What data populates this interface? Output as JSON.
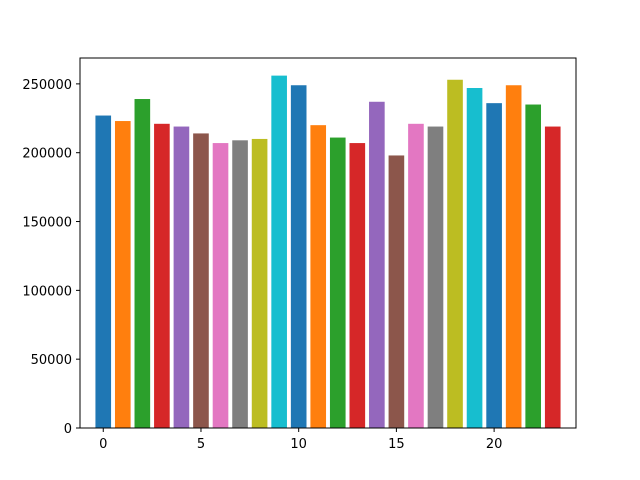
{
  "chart_data": {
    "type": "bar",
    "title": "",
    "xlabel": "",
    "ylabel": "",
    "categories": [
      0,
      1,
      2,
      3,
      4,
      5,
      6,
      7,
      8,
      9,
      10,
      11,
      12,
      13,
      14,
      15,
      16,
      17,
      18,
      19,
      20,
      21,
      22,
      23
    ],
    "values": [
      227000,
      223000,
      239000,
      221000,
      219000,
      214000,
      207000,
      209000,
      210000,
      256000,
      249000,
      220000,
      211000,
      207000,
      237000,
      198000,
      221000,
      219000,
      253000,
      247000,
      236000,
      249000,
      235000,
      219000
    ],
    "colors": [
      "#1f77b4",
      "#ff7f0e",
      "#2ca02c",
      "#d62728",
      "#9467bd",
      "#8c564b",
      "#e377c2",
      "#7f7f7f",
      "#bcbd22",
      "#17becf",
      "#1f77b4",
      "#ff7f0e",
      "#2ca02c",
      "#d62728",
      "#9467bd",
      "#8c564b",
      "#e377c2",
      "#7f7f7f",
      "#bcbd22",
      "#17becf",
      "#1f77b4",
      "#ff7f0e",
      "#2ca02c",
      "#d62728"
    ],
    "xlim": [
      -1.19,
      24.19
    ],
    "ylim": [
      0,
      268800
    ],
    "xticks": [
      0,
      5,
      10,
      15,
      20
    ],
    "yticks": [
      0,
      50000,
      100000,
      150000,
      200000,
      250000
    ],
    "grid": false,
    "legend": false
  }
}
